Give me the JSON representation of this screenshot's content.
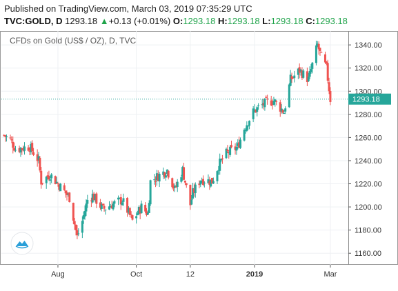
{
  "header": {
    "published": "Published on TradingView.com, March 03, 2019 07:35:29 UTC",
    "symbol": "TVC:GOLD, D",
    "last": "1293.18",
    "up_arrow": "▲",
    "change": "+0.13 (+0.01%)",
    "o_label": "O:",
    "o_val": "1293.18",
    "h_label": "H:",
    "h_val": "1293.18",
    "l_label": "L:",
    "l_val": "1293.18",
    "c_label": "C:",
    "c_val": "1293.18"
  },
  "logo_icon": "tradingview-cloud-icon",
  "colors": {
    "up": "#26a69a",
    "down": "#ef5350",
    "price_line": "#26a69a",
    "price_label_bg": "#26a69a",
    "grid": "#eef0f3",
    "axis": "#555555"
  },
  "chart_data": {
    "type": "candlestick",
    "title": "CFDs on Gold (US$ / OZ), D, TVC",
    "last_price": "1293.18",
    "ylim": [
      1150,
      1352
    ],
    "yticks": [
      1160,
      1180,
      1200,
      1220,
      1240,
      1260,
      1280,
      1300,
      1320,
      1340
    ],
    "xticks": [
      "Aug",
      "Oct",
      "12",
      "2019",
      "Mar"
    ],
    "grid": true,
    "price_keypoints": [
      [
        "2018-06-20",
        1262
      ],
      [
        "2018-06-25",
        1258
      ],
      [
        "2018-06-29",
        1250
      ],
      [
        "2018-07-10",
        1252
      ],
      [
        "2018-07-17",
        1240
      ],
      [
        "2018-07-19",
        1222
      ],
      [
        "2018-07-26",
        1228
      ],
      [
        "2018-08-01",
        1220
      ],
      [
        "2018-08-10",
        1208
      ],
      [
        "2018-08-16",
        1174
      ],
      [
        "2018-08-20",
        1188
      ],
      [
        "2018-08-24",
        1206
      ],
      [
        "2018-08-28",
        1210
      ],
      [
        "2018-09-05",
        1198
      ],
      [
        "2018-09-12",
        1202
      ],
      [
        "2018-09-20",
        1206
      ],
      [
        "2018-09-28",
        1188
      ],
      [
        "2018-10-05",
        1200
      ],
      [
        "2018-10-10",
        1194
      ],
      [
        "2018-10-12",
        1222
      ],
      [
        "2018-10-17",
        1226
      ],
      [
        "2018-10-25",
        1232
      ],
      [
        "2018-10-31",
        1215
      ],
      [
        "2018-11-06",
        1232
      ],
      [
        "2018-11-12",
        1202
      ],
      [
        "2018-11-14",
        1212
      ],
      [
        "2018-11-20",
        1224
      ],
      [
        "2018-11-29",
        1222
      ],
      [
        "2018-12-04",
        1236
      ],
      [
        "2018-12-10",
        1246
      ],
      [
        "2018-12-19",
        1252
      ],
      [
        "2018-12-24",
        1268
      ],
      [
        "2018-12-31",
        1282
      ],
      [
        "2019-01-04",
        1286
      ],
      [
        "2019-01-10",
        1290
      ],
      [
        "2019-01-16",
        1292
      ],
      [
        "2019-01-24",
        1282
      ],
      [
        "2019-01-29",
        1310
      ],
      [
        "2019-02-05",
        1318
      ],
      [
        "2019-02-12",
        1310
      ],
      [
        "2019-02-19",
        1340
      ],
      [
        "2019-02-22",
        1329
      ],
      [
        "2019-02-26",
        1320
      ],
      [
        "2019-03-01",
        1293
      ]
    ]
  }
}
